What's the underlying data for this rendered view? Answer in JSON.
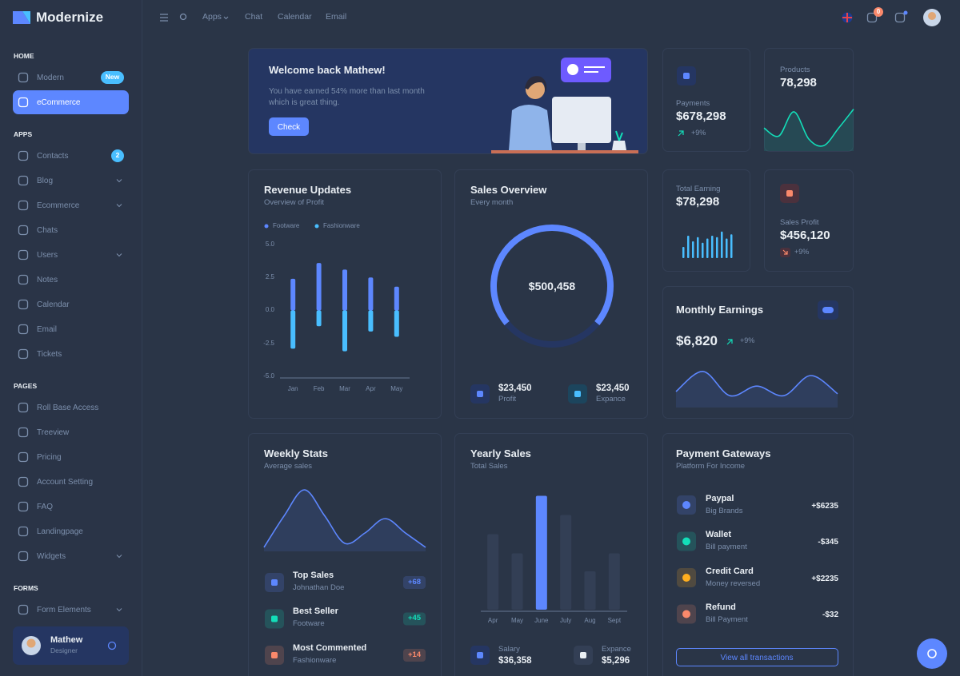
{
  "brand": "Modernize",
  "nav": [
    "Apps",
    "Chat",
    "Calendar",
    "Email"
  ],
  "cart_count": 0,
  "sidebar": [
    {
      "title": "HOME",
      "items": [
        {
          "label": "Modern",
          "badge": "New"
        },
        {
          "label": "eCommerce",
          "active": true
        }
      ]
    },
    {
      "title": "APPS",
      "items": [
        {
          "label": "Contacts",
          "badge": 2
        },
        {
          "label": "Blog",
          "expandable": true
        },
        {
          "label": "Ecommerce",
          "expandable": true
        },
        {
          "label": "Chats"
        },
        {
          "label": "Users",
          "expandable": true
        },
        {
          "label": "Notes"
        },
        {
          "label": "Calendar"
        },
        {
          "label": "Email"
        },
        {
          "label": "Tickets"
        }
      ]
    },
    {
      "title": "PAGES",
      "items": [
        {
          "label": "Roll Base Access"
        },
        {
          "label": "Treeview"
        },
        {
          "label": "Pricing"
        },
        {
          "label": "Account Setting"
        },
        {
          "label": "FAQ"
        },
        {
          "label": "Landingpage"
        },
        {
          "label": "Widgets",
          "expandable": true
        }
      ]
    },
    {
      "title": "FORMS",
      "items": [
        {
          "label": "Form Elements",
          "expandable": true
        }
      ]
    }
  ],
  "user": {
    "name": "Mathew",
    "role": "Designer"
  },
  "welcome": {
    "title": "Welcome back Mathew!",
    "text": "You have earned 54% more than last month which is great thing.",
    "button": "Check"
  },
  "payments": {
    "label": "Payments",
    "value": "$678,298",
    "change": "+9%"
  },
  "products": {
    "label": "Products",
    "value": "78,298",
    "trend": {
      "type": "area",
      "color": "#13deb9",
      "values": [
        45,
        27,
        82,
        20,
        5,
        45,
        88
      ],
      "ylim": [
        0,
        100
      ]
    }
  },
  "total_earning": {
    "label": "Total Earning",
    "value": "$78,298",
    "bars": {
      "type": "bar",
      "color": "#49beff",
      "values": [
        40,
        80,
        60,
        75,
        55,
        70,
        80,
        75,
        95,
        70,
        85
      ],
      "ylim": [
        0,
        100
      ]
    }
  },
  "sales_profit": {
    "label": "Sales Profit",
    "value": "$456,120",
    "change": "+9%"
  },
  "monthly_earnings": {
    "title": "Monthly Earnings",
    "value": "$6,820",
    "change": "+9%",
    "trend": {
      "type": "area",
      "color": "#5d87ff",
      "values": [
        25,
        88,
        12,
        42,
        12,
        75,
        18
      ],
      "ylim": [
        0,
        100
      ]
    }
  },
  "revenue": {
    "title": "Revenue Updates",
    "subtitle": "Overview of Profit",
    "chart": {
      "type": "bar",
      "categories": [
        "Jan",
        "Feb",
        "Mar",
        "Apr",
        "May"
      ],
      "series": [
        {
          "name": "Footware",
          "color": "#5d87ff",
          "values": [
            2.4,
            3.6,
            3.1,
            2.5,
            1.8
          ]
        },
        {
          "name": "Fashionware",
          "color": "#49beff",
          "values": [
            -2.9,
            -1.2,
            -3.1,
            -1.6,
            -2.0
          ]
        }
      ],
      "ylim": [
        -5,
        5
      ],
      "yticks": [
        {
          "value": 5,
          "label": "5.0"
        },
        2.5,
        {
          "value": 0,
          "label": "0.0"
        },
        -2.5,
        {
          "value": -5,
          "label": "-5.0"
        }
      ]
    }
  },
  "sales_overview": {
    "title": "Sales Overview",
    "subtitle": "Every month",
    "total": "$500,458",
    "donut": {
      "type": "pie",
      "values": [
        72,
        28
      ],
      "colors": [
        "#5d87ff",
        "#253662"
      ]
    },
    "stats": [
      {
        "value": "$23,450",
        "label": "Profit"
      },
      {
        "value": "$23,450",
        "label": "Expance"
      }
    ]
  },
  "weekly": {
    "title": "Weekly Stats",
    "subtitle": "Average sales",
    "trend": {
      "type": "area",
      "color": "#5d87ff",
      "values": [
        0,
        55,
        100,
        55,
        7,
        25,
        50,
        25,
        0
      ],
      "ylim": [
        0,
        100
      ]
    },
    "items": [
      {
        "title": "Top Sales",
        "subtitle": "Johnathan Doe",
        "value": "+68",
        "color": "#5d87ff"
      },
      {
        "title": "Best Seller",
        "subtitle": "Footware",
        "value": "+45",
        "color": "#13deb9"
      },
      {
        "title": "Most Commented",
        "subtitle": "Fashionware",
        "value": "+14",
        "color": "#fa896b"
      }
    ]
  },
  "yearly": {
    "title": "Yearly Sales",
    "subtitle": "Total Sales",
    "chart": {
      "type": "bar",
      "categories": [
        "Apr",
        "May",
        "June",
        "July",
        "Aug",
        "Sept"
      ],
      "values": [
        63,
        47,
        95,
        79,
        32,
        47
      ],
      "colors": [
        "#333f55",
        "#333f55",
        "#5d87ff",
        "#333f55",
        "#333f55",
        "#333f55"
      ],
      "ylim": [
        0,
        100
      ]
    },
    "stats": [
      {
        "label": "Salary",
        "value": "$36,358"
      },
      {
        "label": "Expance",
        "value": "$5,296"
      }
    ]
  },
  "gateways": {
    "title": "Payment Gateways",
    "subtitle": "Platform For Income",
    "items": [
      {
        "name": "Paypal",
        "subtitle": "Big Brands",
        "amount": "+$6235",
        "color": "#5d87ff"
      },
      {
        "name": "Wallet",
        "subtitle": "Bill payment",
        "amount": "-$345",
        "color": "#13deb9"
      },
      {
        "name": "Credit Card",
        "subtitle": "Money reversed",
        "amount": "+$2235",
        "color": "#ffae1f"
      },
      {
        "name": "Refund",
        "subtitle": "Bill Payment",
        "amount": "-$32",
        "color": "#fa896b"
      }
    ],
    "button": "View all transactions"
  }
}
